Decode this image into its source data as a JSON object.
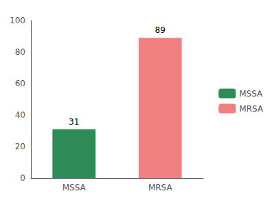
{
  "chart_data": {
    "type": "bar",
    "categories": [
      "MSSA",
      "MRSA"
    ],
    "values": [
      31,
      89
    ],
    "colors": [
      "#2e8b57",
      "#f08080"
    ],
    "ylim": [
      0,
      100
    ],
    "yticks": [
      0,
      20,
      40,
      60,
      80,
      100
    ],
    "grid": false,
    "data_labels": true,
    "legend": "right"
  }
}
